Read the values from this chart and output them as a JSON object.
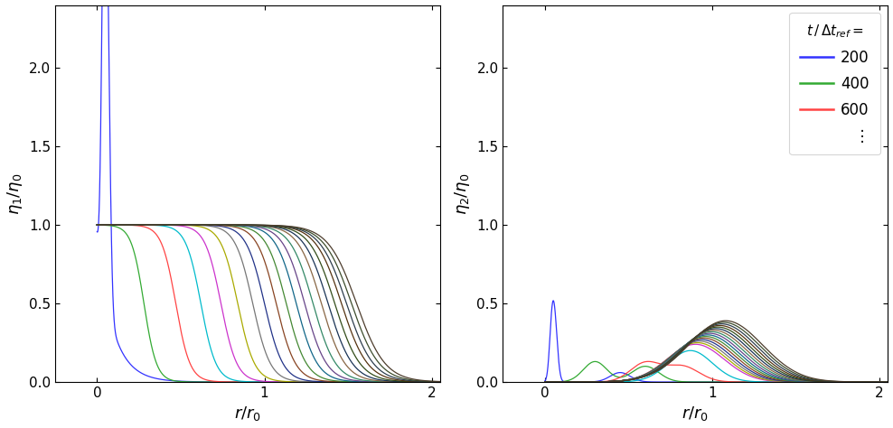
{
  "xlim": [
    -0.25,
    2.05
  ],
  "ylim1": [
    0,
    2.4
  ],
  "ylim2": [
    0,
    2.4
  ],
  "xticks": [
    0,
    1,
    2
  ],
  "yticks": [
    0,
    0.5,
    1.0,
    1.5,
    2.0
  ],
  "xlabel": "$r / r_0$",
  "ylabel1": "$\\eta_1 / \\eta_0$",
  "ylabel2": "$\\eta_2 / \\eta_0$",
  "legend_title_parts": [
    "$t / \\Delta t$",
    "$_{ref}$",
    "$=$"
  ],
  "legend_entries": [
    {
      "label": "200",
      "color": "#3333ff"
    },
    {
      "label": "400",
      "color": "#33aa33"
    },
    {
      "label": "600",
      "color": "#ff4444"
    },
    {
      "label": "   ⋮",
      "color": "none"
    }
  ],
  "n_curves": 20,
  "colors_sequence": [
    "#3333ff",
    "#33aa33",
    "#ff4444",
    "#00bbcc",
    "#cc33cc",
    "#aaaa00",
    "#777777",
    "#223388",
    "#884422",
    "#448833",
    "#116688",
    "#664488",
    "#338866",
    "#886644",
    "#1a3355",
    "#334d1a",
    "#553311",
    "#2d3d4d",
    "#3d4d2d",
    "#4d3d2d"
  ],
  "background_color": "#ffffff",
  "figsize": [
    9.88,
    4.74
  ],
  "dpi": 100
}
